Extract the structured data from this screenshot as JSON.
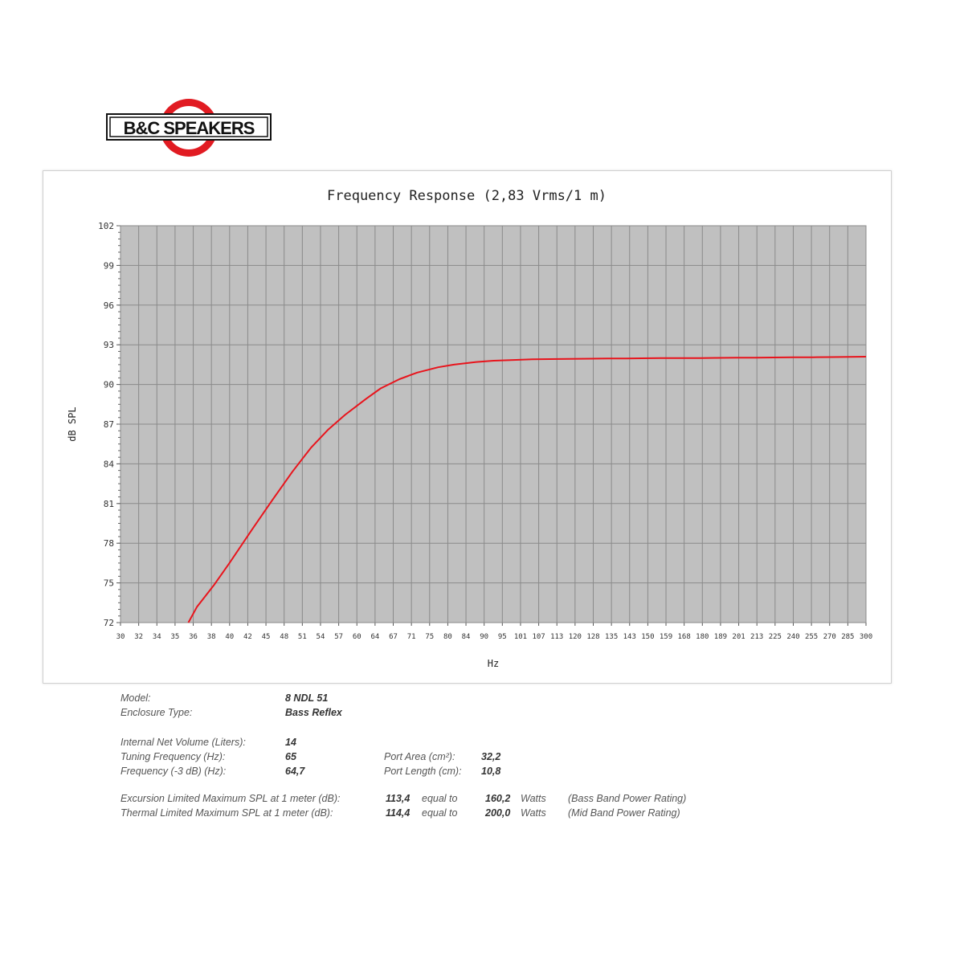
{
  "logo": {
    "text": "B&C SPEAKERS",
    "ring_color": "#e11b22"
  },
  "chart_data": {
    "type": "line",
    "title": "Frequency Response (2,83 Vrms/1 m)",
    "xlabel": "Hz",
    "ylabel": "dB SPL",
    "x_scale": "log",
    "xlim": [
      30,
      300
    ],
    "ylim": [
      72,
      102
    ],
    "x_ticks": [
      "30",
      "32",
      "34",
      "35",
      "36",
      "38",
      "40",
      "42",
      "45",
      "48",
      "51",
      "54",
      "57",
      "60",
      "64",
      "67",
      "71",
      "75",
      "80",
      "84",
      "90",
      "95",
      "101",
      "107",
      "113",
      "120",
      "128",
      "135",
      "143",
      "150",
      "159",
      "168",
      "180",
      "189",
      "201",
      "213",
      "225",
      "240",
      "255",
      "270",
      "285",
      "300"
    ],
    "y_ticks": [
      "72",
      "75",
      "78",
      "81",
      "84",
      "87",
      "90",
      "93",
      "96",
      "99",
      "102"
    ],
    "grid": true,
    "plot_background": "#c0c0c0",
    "series": [
      {
        "color": "#e8141c",
        "x": [
          37,
          38,
          40,
          42,
          45,
          48,
          51,
          54,
          57,
          60,
          64,
          67,
          71,
          75,
          80,
          84,
          90,
          95,
          101,
          107,
          113,
          120,
          128,
          135,
          143,
          150,
          159,
          168,
          180,
          189,
          201,
          213,
          225,
          240,
          255,
          270,
          285,
          300
        ],
        "y": [
          72.0,
          73.2,
          74.8,
          76.5,
          79.0,
          81.3,
          83.4,
          85.2,
          86.6,
          87.7,
          88.9,
          89.7,
          90.4,
          90.9,
          91.3,
          91.5,
          91.7,
          91.8,
          91.85,
          91.9,
          91.92,
          91.94,
          91.95,
          91.96,
          91.97,
          91.98,
          91.99,
          92.0,
          92.0,
          92.01,
          92.02,
          92.03,
          92.04,
          92.05,
          92.06,
          92.07,
          92.08,
          92.1
        ]
      }
    ]
  },
  "specs": {
    "model_label": "Model:",
    "model_value": "8 NDL 51",
    "enclosure_label": "Enclosure Type:",
    "enclosure_value": "Bass Reflex",
    "volume_label": "Internal  Net Volume (Liters):",
    "volume_value": "14",
    "tuning_label": "Tuning Frequency (Hz):",
    "tuning_value": "65",
    "f3_label": "Frequency (-3 dB) (Hz):",
    "f3_value": "64,7",
    "port_area_label": "Port Area (cm²):",
    "port_area_value": "32,2",
    "port_length_label": "Port Length (cm):",
    "port_length_value": "10,8",
    "excursion_label": "Excursion Limited Maximum SPL at 1 meter (dB):",
    "excursion_value": "113,4",
    "excursion_equal": "equal to",
    "excursion_watts_value": "160,2",
    "excursion_watts_unit": "Watts",
    "excursion_note": "(Bass Band Power Rating)",
    "thermal_label": "Thermal Limited Maximum SPL at 1 meter (dB):",
    "thermal_value": "114,4",
    "thermal_equal": "equal to",
    "thermal_watts_value": "200,0",
    "thermal_watts_unit": "Watts",
    "thermal_note": "(Mid Band Power Rating)"
  }
}
